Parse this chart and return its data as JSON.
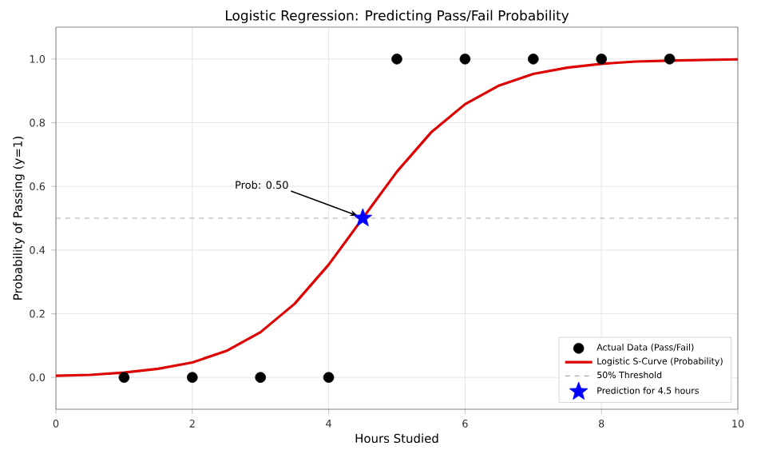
{
  "chart_data": {
    "type": "line",
    "title": "Logistic Regression: Predicting Pass/Fail Probability",
    "xlabel": "Hours Studied",
    "ylabel": "Probability of Passing (y=1)",
    "xlim": [
      0,
      10
    ],
    "ylim": [
      -0.1,
      1.1
    ],
    "xticks": [
      0,
      2,
      4,
      6,
      8,
      10
    ],
    "yticks": [
      {
        "value": 0,
        "label": "0.0"
      },
      {
        "value": 0.2,
        "label": "0.2"
      },
      {
        "value": 0.4,
        "label": "0.4"
      },
      {
        "value": 0.6,
        "label": "0.6"
      },
      {
        "value": 0.8,
        "label": "0.8"
      },
      {
        "value": 1,
        "label": "1.0"
      }
    ],
    "grid": true,
    "legend": "bottom right",
    "series": [
      {
        "name": "Actual Data (Pass/Fail)",
        "type": "scatter",
        "color": "#000000",
        "marker": "circle",
        "x": [
          1,
          2,
          3,
          4,
          5,
          6,
          7,
          8,
          9
        ],
        "values": [
          0,
          0,
          0,
          0,
          1,
          1,
          1,
          1,
          1
        ]
      },
      {
        "name": "Logistic S-Curve (Probability)",
        "color": "#dd0000",
        "marker": "none",
        "line_style": "solid",
        "x": [
          0,
          0.5,
          1,
          1.5,
          2,
          2.5,
          3,
          3.5,
          4,
          4.5,
          5,
          5.5,
          6,
          6.5,
          7,
          7.5,
          8,
          8.5,
          9,
          9.5,
          10
        ],
        "values": [
          0.005,
          0.008,
          0.015,
          0.027,
          0.047,
          0.083,
          0.142,
          0.231,
          0.354,
          0.5,
          0.646,
          0.769,
          0.858,
          0.917,
          0.953,
          0.973,
          0.985,
          0.992,
          0.995,
          0.997,
          0.999
        ]
      },
      {
        "name": "Prediction for 4.5 hours",
        "type": "scatter",
        "color": "#0000ff",
        "marker": "star",
        "x": [
          4.5
        ],
        "values": [
          0.5
        ]
      }
    ],
    "ref_lines": [
      {
        "axis": "y",
        "value": 0.5,
        "label": "50% Threshold",
        "color": "#aaaaaa",
        "line_style": "dashed"
      }
    ],
    "annotations": [
      {
        "text": "Prob: 0.50",
        "x": 4.5,
        "y": 0.5
      }
    ]
  }
}
